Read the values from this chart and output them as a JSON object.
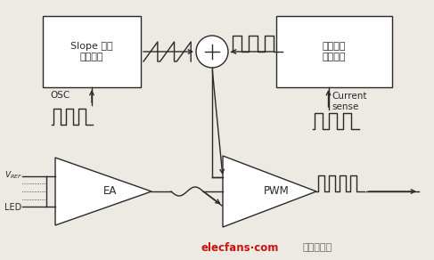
{
  "bg_color": "#ede9e3",
  "line_color": "#2a2a2a",
  "box_color": "#ffffff",
  "box_edge": "#2a2a2a",
  "slope_label1": "Slope 信号",
  "slope_label2": "产生电路",
  "current_label1": "电流采样",
  "current_label2": "放大电路",
  "osc_label": "OSC",
  "current_sense1": "Current",
  "current_sense2": "sense",
  "ea_label": "EA",
  "pwm_label": "PWM",
  "led_label": "LED",
  "watermark_red": "elecfans·com",
  "watermark_gray": "电子发烧友",
  "watermark_color_red": "#cc1111",
  "watermark_color_gray": "#666666"
}
